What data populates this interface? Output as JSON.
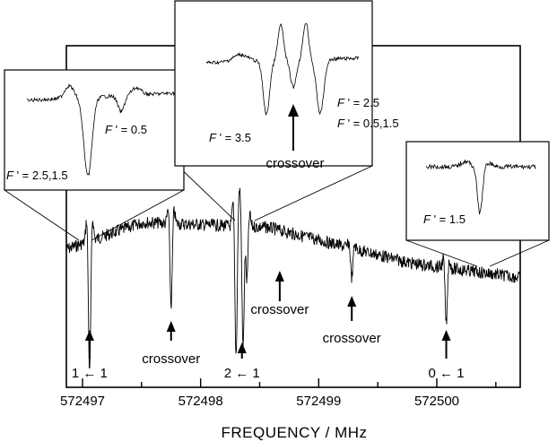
{
  "chart_data": {
    "type": "line",
    "xlabel": "FREQUENCY / MHz",
    "xlim": [
      572497.0,
      572500.5
    ],
    "xticks": [
      572497,
      572498,
      572499,
      572500
    ],
    "tick_labels": [
      "572497",
      "572498",
      "572499",
      "572500"
    ],
    "series_color": "#000000",
    "annotations": [
      {
        "text": "1 ← 1",
        "x": 572497.06
      },
      {
        "text": "crossover",
        "x": 572497.75
      },
      {
        "text": "2 ← 1",
        "x": 572498.35
      },
      {
        "text": "crossover",
        "x": 572498.67
      },
      {
        "text": "crossover",
        "x": 572499.28
      },
      {
        "text": "0 ← 1",
        "x": 572500.08
      }
    ],
    "peaks": [
      {
        "x": 572497.06,
        "depth": 1.0
      },
      {
        "x": 572497.75,
        "depth": 0.62
      },
      {
        "x": 572498.3,
        "depth": 0.98
      },
      {
        "x": 572498.36,
        "depth": 1.0
      },
      {
        "x": 572498.39,
        "depth": 0.55
      },
      {
        "x": 572499.28,
        "depth": 0.22
      },
      {
        "x": 572500.08,
        "depth": 0.42
      }
    ],
    "insets": [
      {
        "name": "left",
        "labels": [
          {
            "prefix": "F",
            "text": " ' = 0.5"
          },
          {
            "prefix": "F",
            "text": " ' = 2.5,1.5"
          }
        ]
      },
      {
        "name": "middle",
        "labels": [
          {
            "prefix": "F",
            "text": " ' = 3.5"
          },
          {
            "prefix": "F",
            "text": " ' = 2.5"
          },
          {
            "prefix": "F",
            "text": " ' = 0.5,1.5"
          }
        ],
        "crossover_label": "crossover"
      },
      {
        "name": "right",
        "labels": [
          {
            "prefix": "F",
            "text": " ' = 1.5"
          }
        ]
      }
    ]
  }
}
